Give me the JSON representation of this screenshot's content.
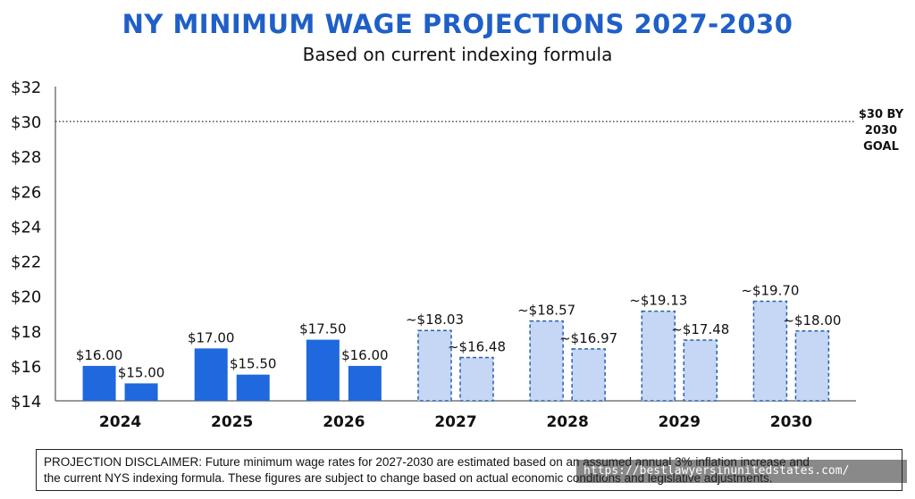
{
  "header": {
    "title": "NY MINIMUM WAGE PROJECTIONS 2027-2030",
    "subtitle": "Based on current indexing formula"
  },
  "colors": {
    "title": "#1f5fc7",
    "actual_bar": "#1f68de",
    "projected_fill": "#c5d7f5",
    "projected_stroke": "#2b5fae",
    "goal_line": "#222222"
  },
  "chart_data": {
    "type": "bar",
    "categories": [
      "2024",
      "2025",
      "2026",
      "2027",
      "2028",
      "2029",
      "2030"
    ],
    "series": [
      {
        "values": [
          16.0,
          17.0,
          17.5,
          18.03,
          18.57,
          19.13,
          19.7
        ],
        "labels": [
          "$16.00",
          "$17.00",
          "$17.50",
          "~$18.03",
          "~$18.57",
          "~$19.13",
          "~$19.70"
        ]
      },
      {
        "values": [
          15.0,
          15.5,
          16.0,
          16.48,
          16.97,
          17.48,
          18.0
        ],
        "labels": [
          "$15.00",
          "$15.50",
          "$16.00",
          "~$16.48",
          "~$16.97",
          "~$17.48",
          "~$18.00"
        ]
      }
    ],
    "projected": [
      false,
      false,
      false,
      true,
      true,
      true,
      true
    ],
    "ylim": [
      14,
      32
    ],
    "yticks": [
      14,
      16,
      18,
      20,
      22,
      24,
      26,
      28,
      30,
      32
    ],
    "ytick_labels": [
      "$14",
      "$16",
      "$18",
      "$20",
      "$22",
      "$24",
      "$26",
      "$28",
      "$30",
      "$32"
    ],
    "reference_line": {
      "value": 30,
      "label_lines": [
        "$30 BY",
        "2030",
        "GOAL"
      ],
      "style": "dotted"
    },
    "grid": false,
    "legend": "none"
  },
  "disclaimer": {
    "line1": "PROJECTION DISCLAIMER: Future minimum wage rates for 2027-2030 are estimated based on an assumed annual 3% inflation increase and",
    "line2": "the current NYS indexing formula. These figures are subject to change based on actual economic conditions and legislative adjustments."
  },
  "watermark": {
    "text": "https://bestlawyersinunitedstates.com/"
  }
}
